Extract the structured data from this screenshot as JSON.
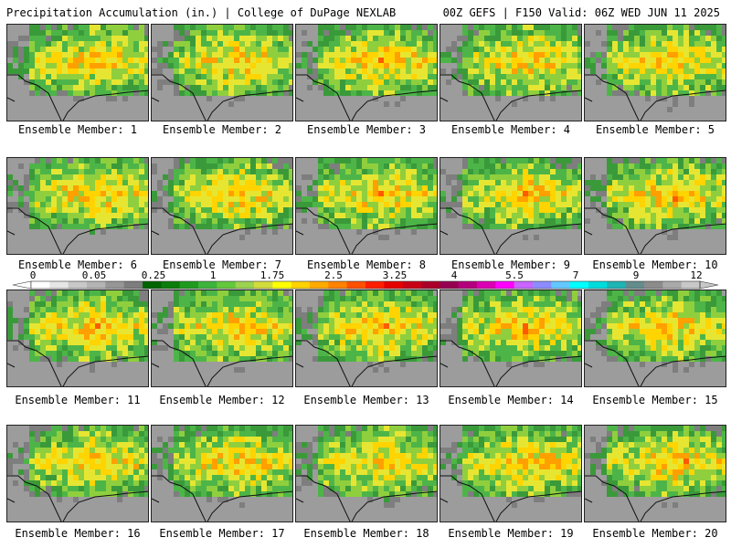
{
  "header": {
    "title": "Precipitation Accumulation (in.) | College of DuPage NEXLAB",
    "valid": "00Z GEFS | F150 Valid: 06Z WED JUN 11 2025"
  },
  "member_label_prefix": "Ensemble Member: ",
  "members": [
    "1",
    "2",
    "3",
    "4",
    "5",
    "6",
    "7",
    "8",
    "9",
    "10",
    "11",
    "12",
    "13",
    "14",
    "15",
    "16",
    "17",
    "18",
    "19",
    "20"
  ],
  "scale": {
    "tick_labels": [
      "0",
      "0.05",
      "0.25",
      "1",
      "1.75",
      "2.5",
      "3.25",
      "4",
      "5.5",
      "7",
      "9",
      "12"
    ],
    "colors": [
      "#ffffff",
      "#e6e6e6",
      "#c8c8c8",
      "#b4b4b4",
      "#969696",
      "#7d7d7d",
      "#006400",
      "#0b7d0b",
      "#1e9b1e",
      "#3cb43c",
      "#64c83c",
      "#9bd250",
      "#d2dc3c",
      "#ffff00",
      "#ffd200",
      "#ffaa00",
      "#ff8200",
      "#ff5000",
      "#ff1e00",
      "#e60000",
      "#c80014",
      "#aa0028",
      "#960050",
      "#b4007d",
      "#dc00b4",
      "#ff00ff",
      "#c864ff",
      "#8c8cff",
      "#64c8ff",
      "#00ffff",
      "#00dcdc",
      "#1eb4b4",
      "#648c8c",
      "#8c8c8c",
      "#aaaaaa",
      "#c8c8c8"
    ]
  }
}
